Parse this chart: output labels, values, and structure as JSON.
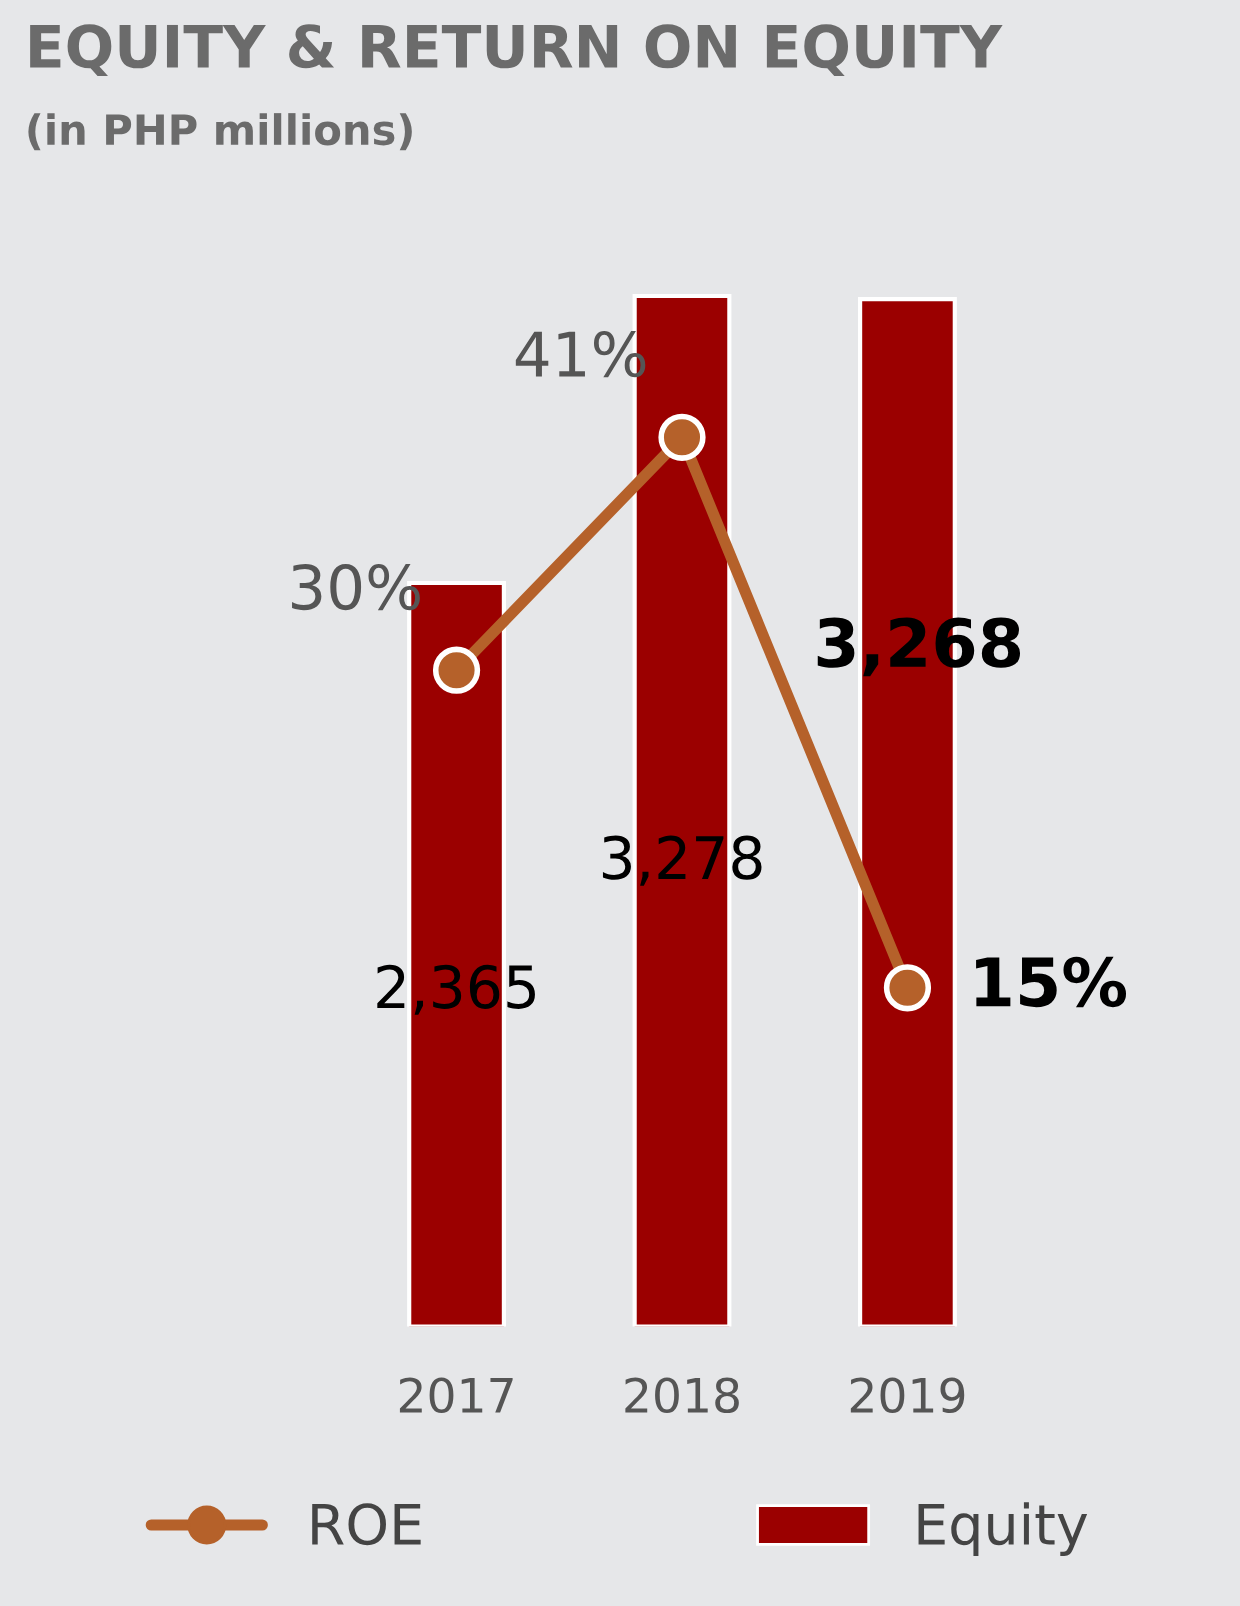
{
  "chart_data": {
    "type": "bar",
    "title": "EQUITY & RETURN ON EQUITY",
    "subtitle": "(in PHP millions)",
    "categories": [
      "2017",
      "2018",
      "2019"
    ],
    "series": [
      {
        "name": "Equity",
        "color": "#9b0000",
        "values": [
          2365,
          3278,
          3268
        ],
        "value_labels": [
          "2,365",
          "3,278",
          "3,268"
        ]
      },
      {
        "name": "ROE",
        "type": "line",
        "axis": "y2",
        "color": "#b5612a",
        "marker": "circle",
        "values": [
          30,
          41,
          15
        ],
        "value_labels": [
          "30%",
          "41%",
          "15%"
        ]
      }
    ],
    "ylim": [
      0,
      3300
    ],
    "y2lim": [
      -1,
      48
    ],
    "tick_labels": "x",
    "grid": false,
    "legend": "bottom"
  }
}
